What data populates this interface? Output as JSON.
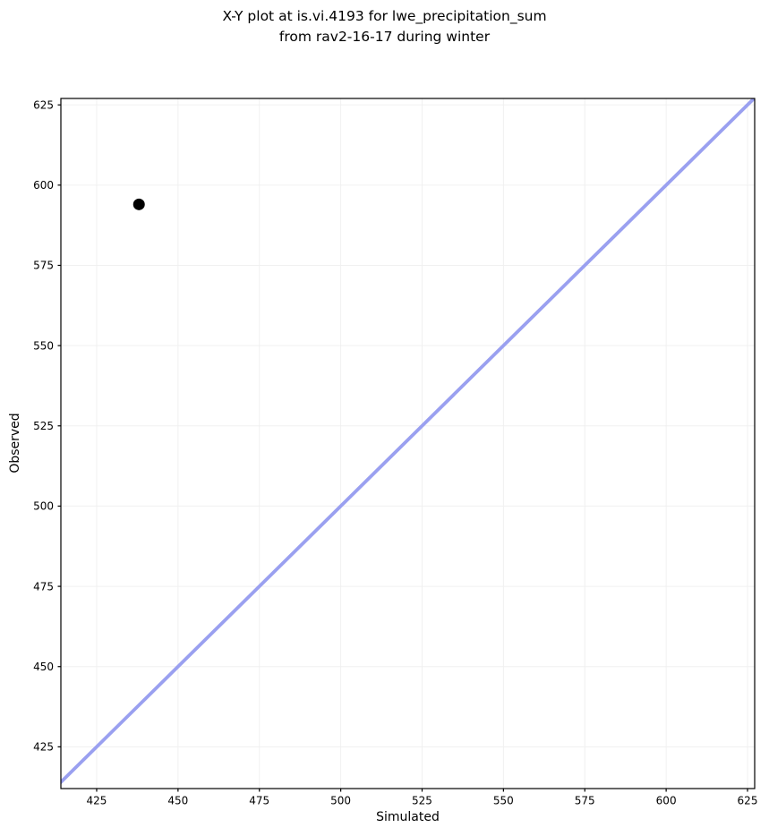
{
  "chart_data": {
    "type": "scatter",
    "title_lines": [
      "X-Y plot at is.vi.4193 for lwe_precipitation_sum",
      "from rav2-16-17 during winter"
    ],
    "title": "X-Y plot at is.vi.4193 for lwe_precipitation_sum\nfrom rav2-16-17 during winter",
    "xlabel": "Simulated",
    "ylabel": "Observed",
    "xlim": [
      414.0,
      627.2
    ],
    "ylim": [
      412.0,
      627.0
    ],
    "xticks": [
      425,
      450,
      475,
      500,
      525,
      550,
      575,
      600,
      625
    ],
    "yticks": [
      425,
      450,
      475,
      500,
      525,
      550,
      575,
      600,
      625
    ],
    "grid": true,
    "legend": false,
    "points": [
      {
        "x": 438,
        "y": 594
      }
    ],
    "identity_line": {
      "show": true,
      "slope": 1,
      "intercept": 0
    },
    "colors": {
      "point": "#000000",
      "identity_line": "#9aa0f0",
      "grid": "#f0f0f0",
      "spine": "#000000",
      "background": "#ffffff"
    },
    "marker_radius": 6.5,
    "identity_line_width": 3.8
  }
}
